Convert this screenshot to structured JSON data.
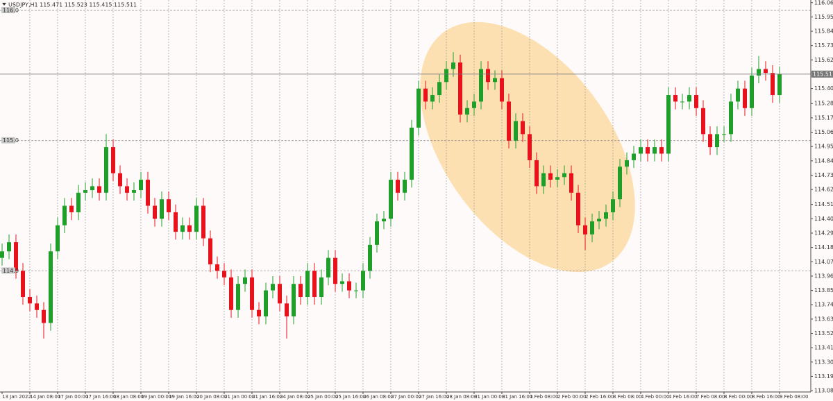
{
  "chart_data": {
    "type": "candlestick",
    "title": "USDJPY,H1  115.471 115.523 115.415 115.511",
    "x_labels": [
      "13 Jan 2022",
      "14 Jan 08:00",
      "17 Jan 00:00",
      "17 Jan 16:00",
      "18 Jan 08:00",
      "19 Jan 00:00",
      "19 Jan 16:00",
      "20 Jan 08:00",
      "21 Jan 00:00",
      "21 Jan 16:00",
      "24 Jan 08:00",
      "25 Jan 00:00",
      "25 Jan 16:00",
      "26 Jan 08:00",
      "27 Jan 00:00",
      "27 Jan 16:00",
      "28 Jan 08:00",
      "31 Jan 00:00",
      "31 Jan 16:00",
      "1 Feb 08:00",
      "2 Feb 00:00",
      "2 Feb 16:00",
      "3 Feb 08:00",
      "4 Feb 00:00",
      "4 Feb 16:00",
      "7 Feb 08:00",
      "8 Feb 00:00",
      "8 Feb 16:00",
      "9 Feb 08:00"
    ],
    "open": [
      114.1,
      114.15,
      114.22,
      114.0,
      113.8,
      113.75,
      113.7,
      113.6,
      114.15,
      114.35,
      114.5,
      114.45,
      114.6,
      114.62,
      114.65,
      114.6,
      114.95,
      114.75,
      114.65,
      114.6,
      114.62,
      114.7,
      114.5,
      114.4,
      114.55,
      114.45,
      114.3,
      114.35,
      114.3,
      114.5,
      114.25,
      114.05,
      114.0,
      113.95,
      113.7,
      113.9,
      113.95,
      113.7,
      113.65,
      113.85,
      113.9,
      113.75,
      113.65,
      113.9,
      113.8,
      114.0,
      113.8,
      113.95,
      114.1,
      113.9,
      113.92,
      113.85,
      113.85,
      114.0,
      114.2,
      114.38,
      114.4,
      114.7,
      114.6,
      114.7,
      115.1,
      115.4,
      115.3,
      115.35,
      115.45,
      115.55,
      115.6,
      115.2,
      115.25,
      115.3,
      115.55,
      115.45,
      115.48,
      115.3,
      115.0,
      115.15,
      115.05,
      114.85,
      114.65,
      114.75,
      114.7,
      114.72,
      114.75,
      114.6,
      114.35,
      114.28,
      114.38,
      114.4,
      114.45,
      114.55,
      114.8,
      114.85,
      114.9,
      114.95,
      114.9,
      114.95,
      114.9,
      115.35,
      115.3,
      115.3,
      115.35,
      115.25,
      115.05,
      114.95,
      115.05,
      115.05,
      115.3,
      115.4,
      115.25,
      115.5,
      115.55,
      115.52,
      115.35
    ],
    "high": [
      114.21,
      114.28,
      114.28,
      114.06,
      113.86,
      113.81,
      113.76,
      114.21,
      114.41,
      114.56,
      114.56,
      114.66,
      114.68,
      114.71,
      114.71,
      115.05,
      115.01,
      114.81,
      114.71,
      114.68,
      114.76,
      114.76,
      114.56,
      114.61,
      114.61,
      114.51,
      114.41,
      114.41,
      114.56,
      114.56,
      114.31,
      114.11,
      114.06,
      114.01,
      113.96,
      114.01,
      114.01,
      113.76,
      113.91,
      113.96,
      113.96,
      113.81,
      113.96,
      113.96,
      114.06,
      114.06,
      114.01,
      114.16,
      114.16,
      113.98,
      113.98,
      113.91,
      114.06,
      114.26,
      114.44,
      114.46,
      114.76,
      114.76,
      114.76,
      115.16,
      115.46,
      115.46,
      115.41,
      115.51,
      115.61,
      115.68,
      115.66,
      115.31,
      115.36,
      115.61,
      115.61,
      115.54,
      115.54,
      115.36,
      115.21,
      115.21,
      115.11,
      114.91,
      114.81,
      114.81,
      114.78,
      114.81,
      114.81,
      114.66,
      114.41,
      114.44,
      114.46,
      114.51,
      114.61,
      114.86,
      114.91,
      114.96,
      115.01,
      115.01,
      115.01,
      115.01,
      115.41,
      115.41,
      115.36,
      115.41,
      115.41,
      115.31,
      115.11,
      115.11,
      115.11,
      115.36,
      115.46,
      115.46,
      115.56,
      115.65,
      115.61,
      115.58,
      115.57
    ],
    "low": [
      114.04,
      114.09,
      113.94,
      113.74,
      113.69,
      113.64,
      113.48,
      113.54,
      114.09,
      114.29,
      114.39,
      114.39,
      114.54,
      114.56,
      114.54,
      114.54,
      114.69,
      114.59,
      114.54,
      114.54,
      114.56,
      114.44,
      114.34,
      114.34,
      114.39,
      114.24,
      114.24,
      114.24,
      114.24,
      114.19,
      113.99,
      113.94,
      113.89,
      113.64,
      113.64,
      113.84,
      113.64,
      113.59,
      113.59,
      113.79,
      113.69,
      113.48,
      113.59,
      113.74,
      113.74,
      113.74,
      113.74,
      113.89,
      113.84,
      113.84,
      113.79,
      113.79,
      113.79,
      113.94,
      114.14,
      114.32,
      114.34,
      114.54,
      114.54,
      114.64,
      115.04,
      115.24,
      115.24,
      115.29,
      115.39,
      115.49,
      115.14,
      115.14,
      115.19,
      115.24,
      115.39,
      115.39,
      115.24,
      114.94,
      114.94,
      114.99,
      114.79,
      114.59,
      114.59,
      114.64,
      114.64,
      114.66,
      114.54,
      114.29,
      114.16,
      114.22,
      114.32,
      114.34,
      114.39,
      114.49,
      114.74,
      114.79,
      114.84,
      114.84,
      114.84,
      114.84,
      114.84,
      115.24,
      115.24,
      115.24,
      115.19,
      114.99,
      114.89,
      114.89,
      114.99,
      114.99,
      115.24,
      115.19,
      115.19,
      115.44,
      115.46,
      115.29,
      115.29
    ],
    "close": [
      114.15,
      114.22,
      114.0,
      113.8,
      113.75,
      113.7,
      113.6,
      114.15,
      114.35,
      114.5,
      114.45,
      114.6,
      114.62,
      114.65,
      114.6,
      114.95,
      114.75,
      114.65,
      114.6,
      114.62,
      114.7,
      114.5,
      114.4,
      114.55,
      114.45,
      114.3,
      114.35,
      114.3,
      114.5,
      114.25,
      114.05,
      114.0,
      113.95,
      113.7,
      113.9,
      113.95,
      113.7,
      113.65,
      113.85,
      113.9,
      113.75,
      113.65,
      113.9,
      113.8,
      114.0,
      113.8,
      113.95,
      114.1,
      113.9,
      113.92,
      113.85,
      113.85,
      114.0,
      114.2,
      114.38,
      114.4,
      114.7,
      114.6,
      114.7,
      115.1,
      115.4,
      115.3,
      115.35,
      115.45,
      115.55,
      115.6,
      115.2,
      115.25,
      115.3,
      115.55,
      115.45,
      115.48,
      115.3,
      115.0,
      115.15,
      115.05,
      114.85,
      114.65,
      114.75,
      114.7,
      114.72,
      114.75,
      114.6,
      114.35,
      114.28,
      114.38,
      114.4,
      114.45,
      114.55,
      114.8,
      114.85,
      114.9,
      114.95,
      114.9,
      114.95,
      114.9,
      115.35,
      115.3,
      115.3,
      115.35,
      115.25,
      115.05,
      114.95,
      115.05,
      115.05,
      115.3,
      115.4,
      115.25,
      115.5,
      115.55,
      115.52,
      115.35,
      115.51
    ],
    "up_color": "#1f9e2a",
    "down_color": "#e8121c",
    "ylim": [
      113.07,
      116.08
    ],
    "yticks": [
      {
        "value": 116.06,
        "label": "116.060"
      },
      {
        "value": 115.95,
        "label": "115.950"
      },
      {
        "value": 115.84,
        "label": "115.840"
      },
      {
        "value": 115.73,
        "label": "115.730"
      },
      {
        "value": 115.62,
        "label": "115.620"
      },
      {
        "value": 115.4,
        "label": "115.400"
      },
      {
        "value": 115.285,
        "label": "115.285"
      },
      {
        "value": 115.175,
        "label": "115.175"
      },
      {
        "value": 115.065,
        "label": "115.065"
      },
      {
        "value": 114.955,
        "label": "114.955"
      },
      {
        "value": 114.845,
        "label": "114.845"
      },
      {
        "value": 114.735,
        "label": "114.735"
      },
      {
        "value": 114.625,
        "label": "114.625"
      },
      {
        "value": 114.51,
        "label": "114.510"
      },
      {
        "value": 114.4,
        "label": "114.400"
      },
      {
        "value": 114.29,
        "label": "114.290"
      },
      {
        "value": 114.18,
        "label": "114.180"
      },
      {
        "value": 114.07,
        "label": "114.070"
      },
      {
        "value": 113.96,
        "label": "113.960"
      },
      {
        "value": 113.85,
        "label": "113.850"
      },
      {
        "value": 113.74,
        "label": "113.740"
      },
      {
        "value": 113.63,
        "label": "113.630"
      },
      {
        "value": 113.52,
        "label": "113.520"
      },
      {
        "value": 113.41,
        "label": "113.410"
      },
      {
        "value": 113.3,
        "label": "113.300"
      },
      {
        "value": 113.19,
        "label": "113.190"
      },
      {
        "value": 113.08,
        "label": "113.080"
      }
    ],
    "levels": [
      {
        "value": 116,
        "label": "116.0"
      },
      {
        "value": 115,
        "label": "115.0"
      },
      {
        "value": 114,
        "label": "114.0"
      }
    ],
    "current_price": 115.511,
    "grid": true
  }
}
